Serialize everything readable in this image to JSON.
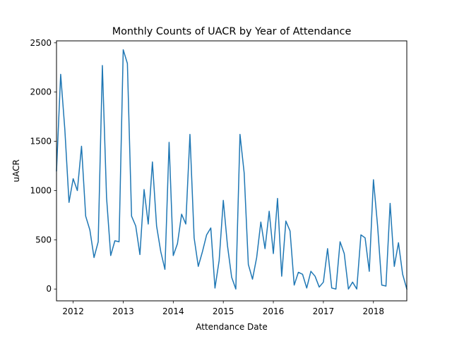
{
  "chart_data": {
    "type": "line",
    "title": "Monthly Counts of UACR by Year of Attendance",
    "xlabel": "Attendance Date",
    "ylabel": "uACR",
    "xlim": [
      "2011-09",
      "2018-09"
    ],
    "ylim": [
      -120,
      2520
    ],
    "grid": false,
    "legend": "none",
    "line_color": "#1f77b4",
    "x_ticks": [
      "2012",
      "2013",
      "2014",
      "2015",
      "2016",
      "2017",
      "2018"
    ],
    "y_ticks": [
      0,
      500,
      1000,
      1500,
      2000,
      2500
    ],
    "x": [
      "2011-09",
      "2011-10",
      "2011-11",
      "2011-12",
      "2012-01",
      "2012-02",
      "2012-03",
      "2012-04",
      "2012-05",
      "2012-06",
      "2012-07",
      "2012-08",
      "2012-09",
      "2012-10",
      "2012-11",
      "2012-12",
      "2013-01",
      "2013-02",
      "2013-03",
      "2013-04",
      "2013-05",
      "2013-06",
      "2013-07",
      "2013-08",
      "2013-09",
      "2013-10",
      "2013-11",
      "2013-12",
      "2014-01",
      "2014-02",
      "2014-03",
      "2014-04",
      "2014-05",
      "2014-06",
      "2014-07",
      "2014-08",
      "2014-09",
      "2014-10",
      "2014-11",
      "2014-12",
      "2015-01",
      "2015-02",
      "2015-03",
      "2015-04",
      "2015-05",
      "2015-06",
      "2015-07",
      "2015-08",
      "2015-09",
      "2015-10",
      "2015-11",
      "2015-12",
      "2016-01",
      "2016-02",
      "2016-03",
      "2016-04",
      "2016-05",
      "2016-06",
      "2016-07",
      "2016-08",
      "2016-09",
      "2016-10",
      "2016-11",
      "2016-12",
      "2017-01",
      "2017-02",
      "2017-03",
      "2017-04",
      "2017-05",
      "2017-06",
      "2017-07",
      "2017-08",
      "2017-09",
      "2017-10",
      "2017-11",
      "2017-12",
      "2018-01",
      "2018-02",
      "2018-03",
      "2018-04",
      "2018-05",
      "2018-06",
      "2018-07",
      "2018-08",
      "2018-09"
    ],
    "y": [
      1200,
      2180,
      1620,
      880,
      1120,
      1000,
      1450,
      740,
      600,
      320,
      480,
      2270,
      930,
      340,
      490,
      480,
      2430,
      2290,
      740,
      640,
      350,
      1010,
      660,
      1290,
      640,
      380,
      200,
      1490,
      340,
      460,
      760,
      660,
      1570,
      520,
      230,
      380,
      550,
      620,
      10,
      290,
      900,
      440,
      120,
      0,
      1570,
      1180,
      250,
      100,
      320,
      680,
      410,
      790,
      360,
      920,
      130,
      690,
      590,
      40,
      170,
      150,
      10,
      180,
      130,
      20,
      70,
      410,
      10,
      0,
      480,
      360,
      0,
      70,
      0,
      550,
      520,
      180,
      1110,
      640,
      40,
      30,
      870,
      230,
      470,
      150,
      0
    ]
  }
}
